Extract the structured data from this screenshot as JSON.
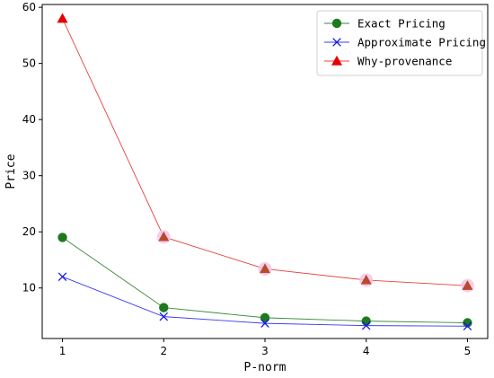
{
  "chart_data": {
    "type": "line",
    "x": [
      1,
      2,
      3,
      4,
      5
    ],
    "xlabel": "P-norm",
    "ylabel": "Price",
    "xlim": [
      0.8,
      5.2
    ],
    "ylim": [
      1,
      60.5
    ],
    "xticks": [
      1,
      2,
      3,
      4,
      5
    ],
    "yticks": [
      10,
      20,
      30,
      40,
      50,
      60
    ],
    "legend_position": "top-right",
    "grid": false,
    "series": [
      {
        "name": "Exact Pricing",
        "values": [
          19.0,
          6.5,
          4.7,
          4.1,
          3.8
        ],
        "color": "#1f7a1f",
        "line_color": "#3a8a3a",
        "marker": "circle"
      },
      {
        "name": "Approximate Pricing",
        "values": [
          12.0,
          4.9,
          3.7,
          3.3,
          3.2
        ],
        "color": "#1414e6",
        "line_color": "#3c3cf0",
        "marker": "x"
      },
      {
        "name": "Why-provenance",
        "values": [
          58.0,
          19.1,
          13.4,
          11.4,
          10.4
        ],
        "color": "#e60000",
        "line_color": "#e84040",
        "marker": "triangle"
      }
    ]
  }
}
